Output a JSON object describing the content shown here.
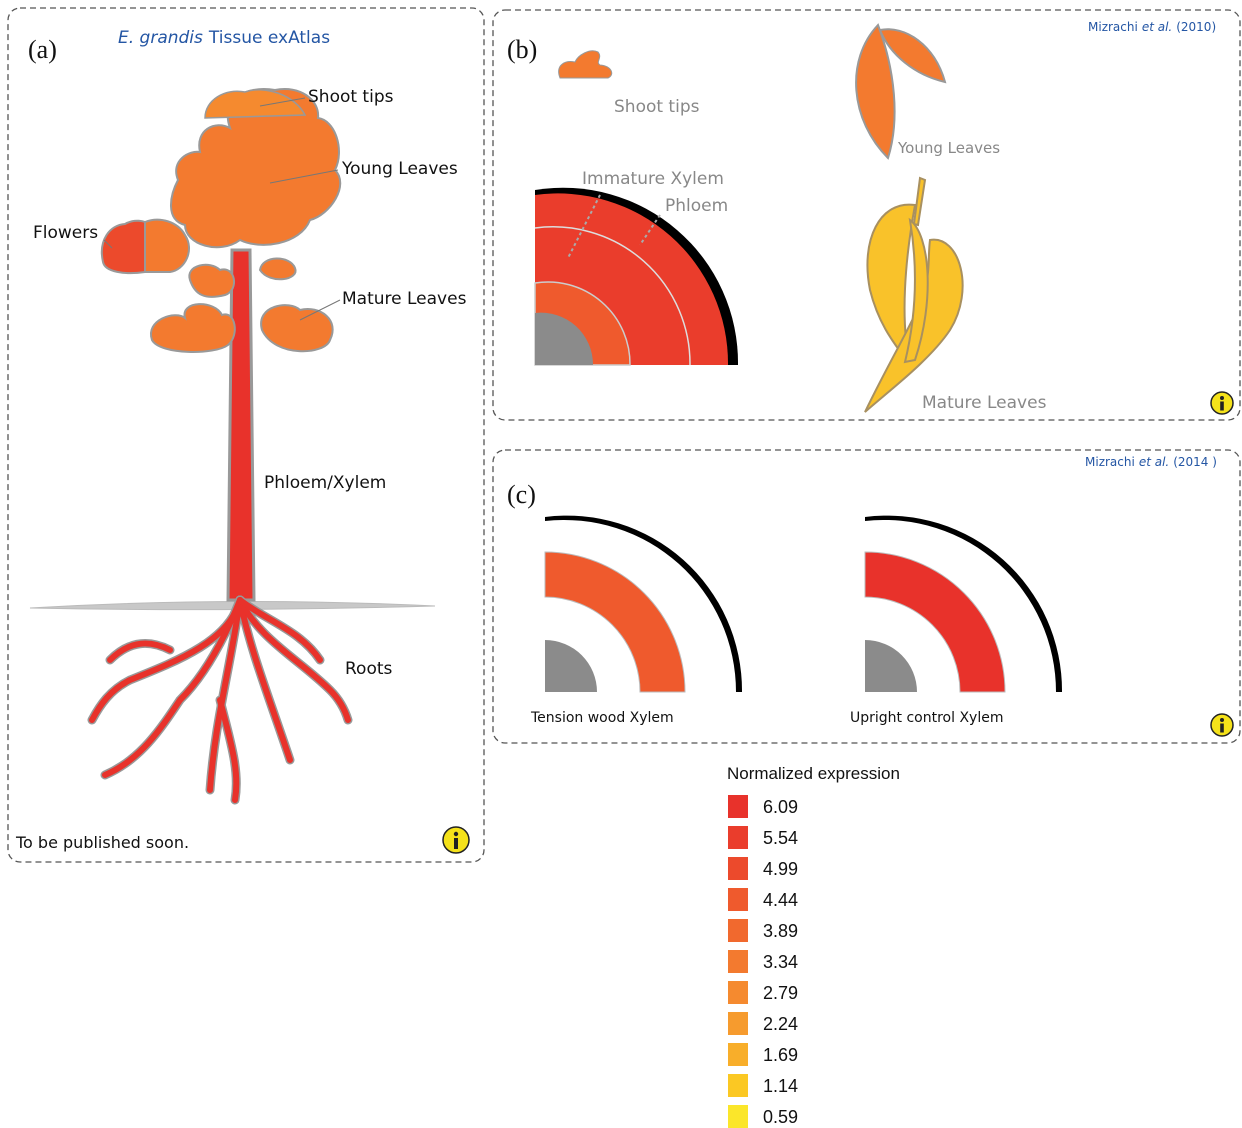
{
  "panel_a": {
    "label": "(a)",
    "title_species": "E. grandis",
    "title_rest": "Tissue exAtlas",
    "tissues": [
      "Shoot tips",
      "Young Leaves",
      "Flowers",
      "Mature Leaves",
      "Phloem/Xylem",
      "Roots"
    ],
    "footer": "To be published soon."
  },
  "panel_b": {
    "label": "(b)",
    "citation_author": "Mizrachi",
    "citation_etal": "et al.",
    "citation_year": "(2010)",
    "tissues": [
      "Shoot tips",
      "Young Leaves",
      "Immature Xylem",
      "Phloem",
      "Mature Leaves"
    ]
  },
  "panel_c": {
    "label": "(c)",
    "citation_author": "Mizrachi",
    "citation_etal": "et al.",
    "citation_year": "(2014 )",
    "tissues": [
      "Tension wood Xylem",
      "Upright control Xylem"
    ]
  },
  "legend": {
    "title": "Normalized expression",
    "items": [
      {
        "value": 6.09,
        "color": "#e8322b"
      },
      {
        "value": 5.54,
        "color": "#ea3d2c"
      },
      {
        "value": 4.99,
        "color": "#ec4a2c"
      },
      {
        "value": 4.44,
        "color": "#ef5a2d"
      },
      {
        "value": 3.89,
        "color": "#f1692e"
      },
      {
        "value": 3.34,
        "color": "#f37a2f"
      },
      {
        "value": 2.79,
        "color": "#f58a2f"
      },
      {
        "value": 2.24,
        "color": "#f69b2e"
      },
      {
        "value": 1.69,
        "color": "#f8ae2a"
      },
      {
        "value": 1.14,
        "color": "#fbc823"
      },
      {
        "value": 0.59,
        "color": "#fbe62a"
      }
    ]
  }
}
